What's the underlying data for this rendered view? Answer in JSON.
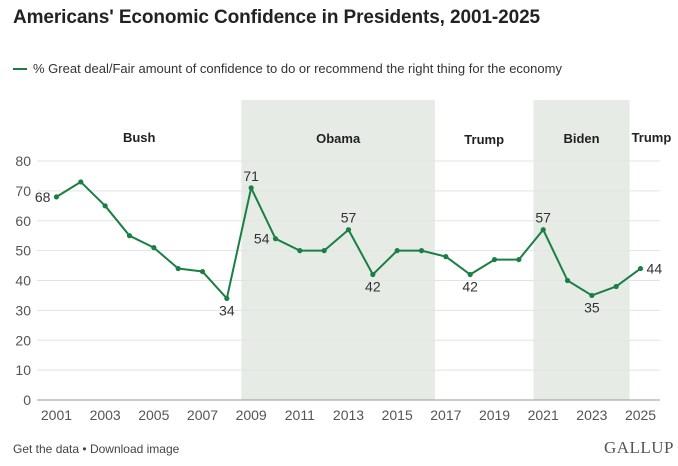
{
  "header": {
    "title": "Americans' Economic Confidence in Presidents, 2001-2025"
  },
  "footer": {
    "get_data": "Get the data",
    "separator": "•",
    "download": "Download image",
    "brand": "GALLUP"
  },
  "colors": {
    "line": "#1a7f44",
    "shade": "#e6ebe6",
    "grid": "#e3e3e3"
  },
  "chart_data": {
    "type": "line",
    "title": "Americans' Economic Confidence in Presidents, 2001-2025",
    "xlabel": "",
    "ylabel": "",
    "ylim": [
      0,
      80
    ],
    "xlim": [
      2000.2,
      2025.8
    ],
    "yticks": [
      0,
      10,
      20,
      30,
      40,
      50,
      60,
      70,
      80
    ],
    "xticks": [
      2001,
      2003,
      2005,
      2007,
      2009,
      2011,
      2013,
      2015,
      2017,
      2019,
      2021,
      2023,
      2025
    ],
    "grid": true,
    "legend_position": "top-left",
    "series": [
      {
        "name": "% Great deal/Fair amount of confidence to do or recommend the right thing for the economy",
        "x": [
          2001,
          2002,
          2003,
          2004,
          2005,
          2006,
          2007,
          2008,
          2009,
          2010,
          2011,
          2012,
          2013,
          2014,
          2015,
          2016,
          2017,
          2018,
          2019,
          2020,
          2021,
          2022,
          2023,
          2024,
          2025
        ],
        "values": [
          68,
          73,
          65,
          55,
          51,
          44,
          43,
          34,
          71,
          54,
          50,
          50,
          57,
          42,
          50,
          50,
          48,
          42,
          47,
          47,
          57,
          40,
          35,
          38,
          44
        ]
      }
    ],
    "data_labels": [
      {
        "x": 2001,
        "text": "68",
        "pos": "left"
      },
      {
        "x": 2008,
        "text": "34",
        "pos": "below"
      },
      {
        "x": 2009,
        "text": "71",
        "pos": "above"
      },
      {
        "x": 2010,
        "text": "54",
        "pos": "left"
      },
      {
        "x": 2013,
        "text": "57",
        "pos": "above"
      },
      {
        "x": 2014,
        "text": "42",
        "pos": "below"
      },
      {
        "x": 2018,
        "text": "42",
        "pos": "below"
      },
      {
        "x": 2021,
        "text": "57",
        "pos": "above"
      },
      {
        "x": 2023,
        "text": "35",
        "pos": "below"
      },
      {
        "x": 2025,
        "text": "44",
        "pos": "right"
      }
    ],
    "presidencies": [
      {
        "name": "Bush",
        "from": 2000.2,
        "to": 2008.6,
        "shaded": false
      },
      {
        "name": "Obama",
        "from": 2008.6,
        "to": 2016.55,
        "shaded": true
      },
      {
        "name": "Trump",
        "from": 2016.55,
        "to": 2020.6,
        "shaded": false
      },
      {
        "name": "Biden",
        "from": 2020.6,
        "to": 2024.55,
        "shaded": true
      },
      {
        "name": "Trump",
        "from": 2024.55,
        "to": 2025.8,
        "shaded": false
      }
    ]
  }
}
